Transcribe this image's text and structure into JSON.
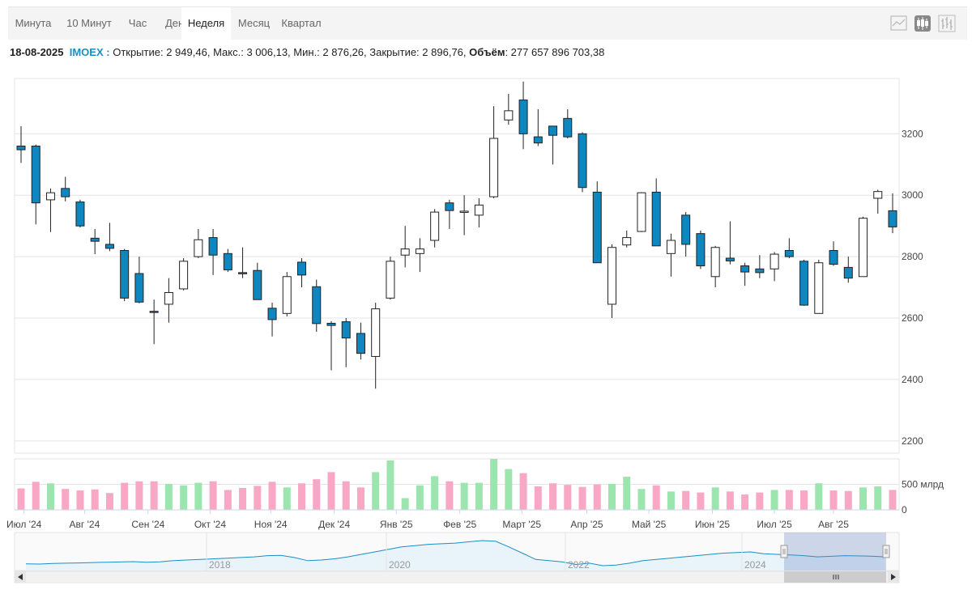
{
  "tabs": [
    {
      "label": "Минута",
      "active": false
    },
    {
      "label": "10 Минут",
      "active": false
    },
    {
      "label": "Час",
      "active": false
    },
    {
      "label": "День",
      "active": false
    },
    {
      "label": "Неделя",
      "active": true
    },
    {
      "label": "Месяц",
      "active": false
    },
    {
      "label": "Квартал",
      "active": false
    }
  ],
  "toolbar_icons": [
    "line-chart-icon",
    "candlestick-icon",
    "ohlc-bars-icon"
  ],
  "info": {
    "date": "18-08-2025",
    "ticker": "IMOEX :",
    "open_label": "Открытие:",
    "open": "2 949,46,",
    "high_label": "Макс.:",
    "high": "3 006,13,",
    "low_label": "Мин.:",
    "low": "2 876,26,",
    "close_label": "Закрытие:",
    "close": "2 896,76,",
    "volume_label": "Объём",
    "volume": ": 277 657 896 703,38"
  },
  "colors": {
    "down": "#0e87c0",
    "up": "#ffffff",
    "vol_up": "#9de5ae",
    "vol_down": "#f8a8c4",
    "nav_line": "#1a8fc4"
  },
  "chart_data": {
    "type": "candlestick",
    "ylim": [
      2160,
      3380
    ],
    "y_ticks": [
      2200,
      2400,
      2600,
      2800,
      3000,
      3200
    ],
    "volume_ticks": [
      {
        "label": "0",
        "value": 0
      },
      {
        "label": "500 млрд",
        "value": 500
      }
    ],
    "volume_max": 1000,
    "x_labels": [
      "Июл '24",
      "Авг '24",
      "Сен '24",
      "Окт '24",
      "Ноя '24",
      "Дек '24",
      "Янв '25",
      "Фев '25",
      "Март '25",
      "Апр '25",
      "Май '25",
      "Июн '25",
      "Июл '25",
      "Авг '25"
    ],
    "x_label_index": [
      0.2,
      4.3,
      8.6,
      12.8,
      16.9,
      21.2,
      25.4,
      29.7,
      33.9,
      38.3,
      42.5,
      46.8,
      51.0,
      55.0
    ],
    "candles": [
      {
        "o": 3160,
        "h": 3225,
        "l": 3105,
        "c": 3148
      },
      {
        "o": 3160,
        "h": 3165,
        "l": 2905,
        "c": 2975
      },
      {
        "o": 2985,
        "h": 3022,
        "l": 2880,
        "c": 3008
      },
      {
        "o": 3022,
        "h": 3060,
        "l": 2980,
        "c": 2995
      },
      {
        "o": 2978,
        "h": 2985,
        "l": 2895,
        "c": 2900
      },
      {
        "o": 2860,
        "h": 2890,
        "l": 2808,
        "c": 2850
      },
      {
        "o": 2840,
        "h": 2910,
        "l": 2818,
        "c": 2827
      },
      {
        "o": 2820,
        "h": 2825,
        "l": 2655,
        "c": 2665
      },
      {
        "o": 2745,
        "h": 2800,
        "l": 2648,
        "c": 2652
      },
      {
        "o": 2622,
        "h": 2660,
        "l": 2515,
        "c": 2620
      },
      {
        "o": 2645,
        "h": 2730,
        "l": 2585,
        "c": 2683
      },
      {
        "o": 2695,
        "h": 2795,
        "l": 2690,
        "c": 2785
      },
      {
        "o": 2800,
        "h": 2890,
        "l": 2795,
        "c": 2855
      },
      {
        "o": 2862,
        "h": 2890,
        "l": 2740,
        "c": 2805
      },
      {
        "o": 2810,
        "h": 2825,
        "l": 2750,
        "c": 2757
      },
      {
        "o": 2748,
        "h": 2830,
        "l": 2730,
        "c": 2746
      },
      {
        "o": 2755,
        "h": 2780,
        "l": 2660,
        "c": 2660
      },
      {
        "o": 2632,
        "h": 2650,
        "l": 2540,
        "c": 2595
      },
      {
        "o": 2615,
        "h": 2750,
        "l": 2605,
        "c": 2735
      },
      {
        "o": 2782,
        "h": 2795,
        "l": 2700,
        "c": 2740
      },
      {
        "o": 2702,
        "h": 2725,
        "l": 2555,
        "c": 2582
      },
      {
        "o": 2583,
        "h": 2590,
        "l": 2430,
        "c": 2576
      },
      {
        "o": 2588,
        "h": 2600,
        "l": 2440,
        "c": 2535
      },
      {
        "o": 2550,
        "h": 2585,
        "l": 2465,
        "c": 2485
      },
      {
        "o": 2475,
        "h": 2650,
        "l": 2370,
        "c": 2630
      },
      {
        "o": 2665,
        "h": 2800,
        "l": 2660,
        "c": 2785
      },
      {
        "o": 2805,
        "h": 2900,
        "l": 2765,
        "c": 2825
      },
      {
        "o": 2810,
        "h": 2860,
        "l": 2750,
        "c": 2825
      },
      {
        "o": 2853,
        "h": 2955,
        "l": 2830,
        "c": 2945
      },
      {
        "o": 2975,
        "h": 2985,
        "l": 2890,
        "c": 2950
      },
      {
        "o": 2945,
        "h": 3000,
        "l": 2870,
        "c": 2948
      },
      {
        "o": 2935,
        "h": 2990,
        "l": 2895,
        "c": 2968
      },
      {
        "o": 2995,
        "h": 3290,
        "l": 2990,
        "c": 3185
      },
      {
        "o": 3245,
        "h": 3330,
        "l": 3230,
        "c": 3275
      },
      {
        "o": 3310,
        "h": 3370,
        "l": 3150,
        "c": 3200
      },
      {
        "o": 3190,
        "h": 3280,
        "l": 3160,
        "c": 3170
      },
      {
        "o": 3225,
        "h": 3225,
        "l": 3100,
        "c": 3195
      },
      {
        "o": 3250,
        "h": 3280,
        "l": 3185,
        "c": 3190
      },
      {
        "o": 3200,
        "h": 3205,
        "l": 3010,
        "c": 3025
      },
      {
        "o": 3010,
        "h": 3045,
        "l": 2780,
        "c": 2780
      },
      {
        "o": 2645,
        "h": 2840,
        "l": 2600,
        "c": 2830
      },
      {
        "o": 2838,
        "h": 2885,
        "l": 2830,
        "c": 2862
      },
      {
        "o": 2882,
        "h": 3010,
        "l": 2880,
        "c": 3008
      },
      {
        "o": 3010,
        "h": 3055,
        "l": 2835,
        "c": 2835
      },
      {
        "o": 2810,
        "h": 2875,
        "l": 2735,
        "c": 2853
      },
      {
        "o": 2935,
        "h": 2945,
        "l": 2800,
        "c": 2840
      },
      {
        "o": 2875,
        "h": 2885,
        "l": 2760,
        "c": 2770
      },
      {
        "o": 2735,
        "h": 2835,
        "l": 2700,
        "c": 2830
      },
      {
        "o": 2795,
        "h": 2915,
        "l": 2775,
        "c": 2786
      },
      {
        "o": 2770,
        "h": 2780,
        "l": 2705,
        "c": 2750
      },
      {
        "o": 2760,
        "h": 2805,
        "l": 2730,
        "c": 2748
      },
      {
        "o": 2760,
        "h": 2815,
        "l": 2720,
        "c": 2808
      },
      {
        "o": 2820,
        "h": 2860,
        "l": 2795,
        "c": 2800
      },
      {
        "o": 2785,
        "h": 2790,
        "l": 2640,
        "c": 2642
      },
      {
        "o": 2615,
        "h": 2790,
        "l": 2615,
        "c": 2780
      },
      {
        "o": 2820,
        "h": 2850,
        "l": 2770,
        "c": 2775
      },
      {
        "o": 2765,
        "h": 2800,
        "l": 2715,
        "c": 2730
      },
      {
        "o": 2735,
        "h": 2930,
        "l": 2735,
        "c": 2925
      },
      {
        "o": 2990,
        "h": 3018,
        "l": 2940,
        "c": 3012
      },
      {
        "o": 2949.46,
        "h": 3006.13,
        "l": 2876.26,
        "c": 2896.76
      }
    ],
    "volumes": [
      420,
      550,
      520,
      410,
      380,
      400,
      330,
      530,
      560,
      560,
      510,
      480,
      530,
      560,
      390,
      430,
      470,
      550,
      440,
      520,
      600,
      740,
      560,
      440,
      740,
      970,
      230,
      480,
      660,
      560,
      530,
      530,
      1000,
      800,
      720,
      460,
      520,
      490,
      450,
      500,
      510,
      650,
      410,
      480,
      360,
      370,
      340,
      440,
      360,
      300,
      340,
      390,
      390,
      380,
      520,
      380,
      370,
      440,
      460,
      390
    ],
    "navigator": {
      "x_labels": [
        "2018",
        "2020",
        "2022",
        "2024"
      ],
      "series": [
        2350,
        2330,
        2380,
        2400,
        2420,
        2450,
        2480,
        2500,
        2520,
        2470,
        2510,
        2600,
        2650,
        2700,
        2750,
        2800,
        2850,
        2900,
        3000,
        3020,
        2850,
        2600,
        2650,
        2750,
        2900,
        3100,
        3300,
        3500,
        3700,
        3800,
        3900,
        3950,
        4000,
        4100,
        4200,
        4150,
        3700,
        3200,
        2700,
        2600,
        2500,
        2300,
        2400,
        2200,
        2250,
        2400,
        2600,
        2700,
        2800,
        2900,
        3000,
        3100,
        3200,
        3250,
        3300,
        3150,
        3100,
        3050,
        3000,
        2900,
        2950,
        3000,
        2980,
        2960,
        2900
      ]
    }
  }
}
